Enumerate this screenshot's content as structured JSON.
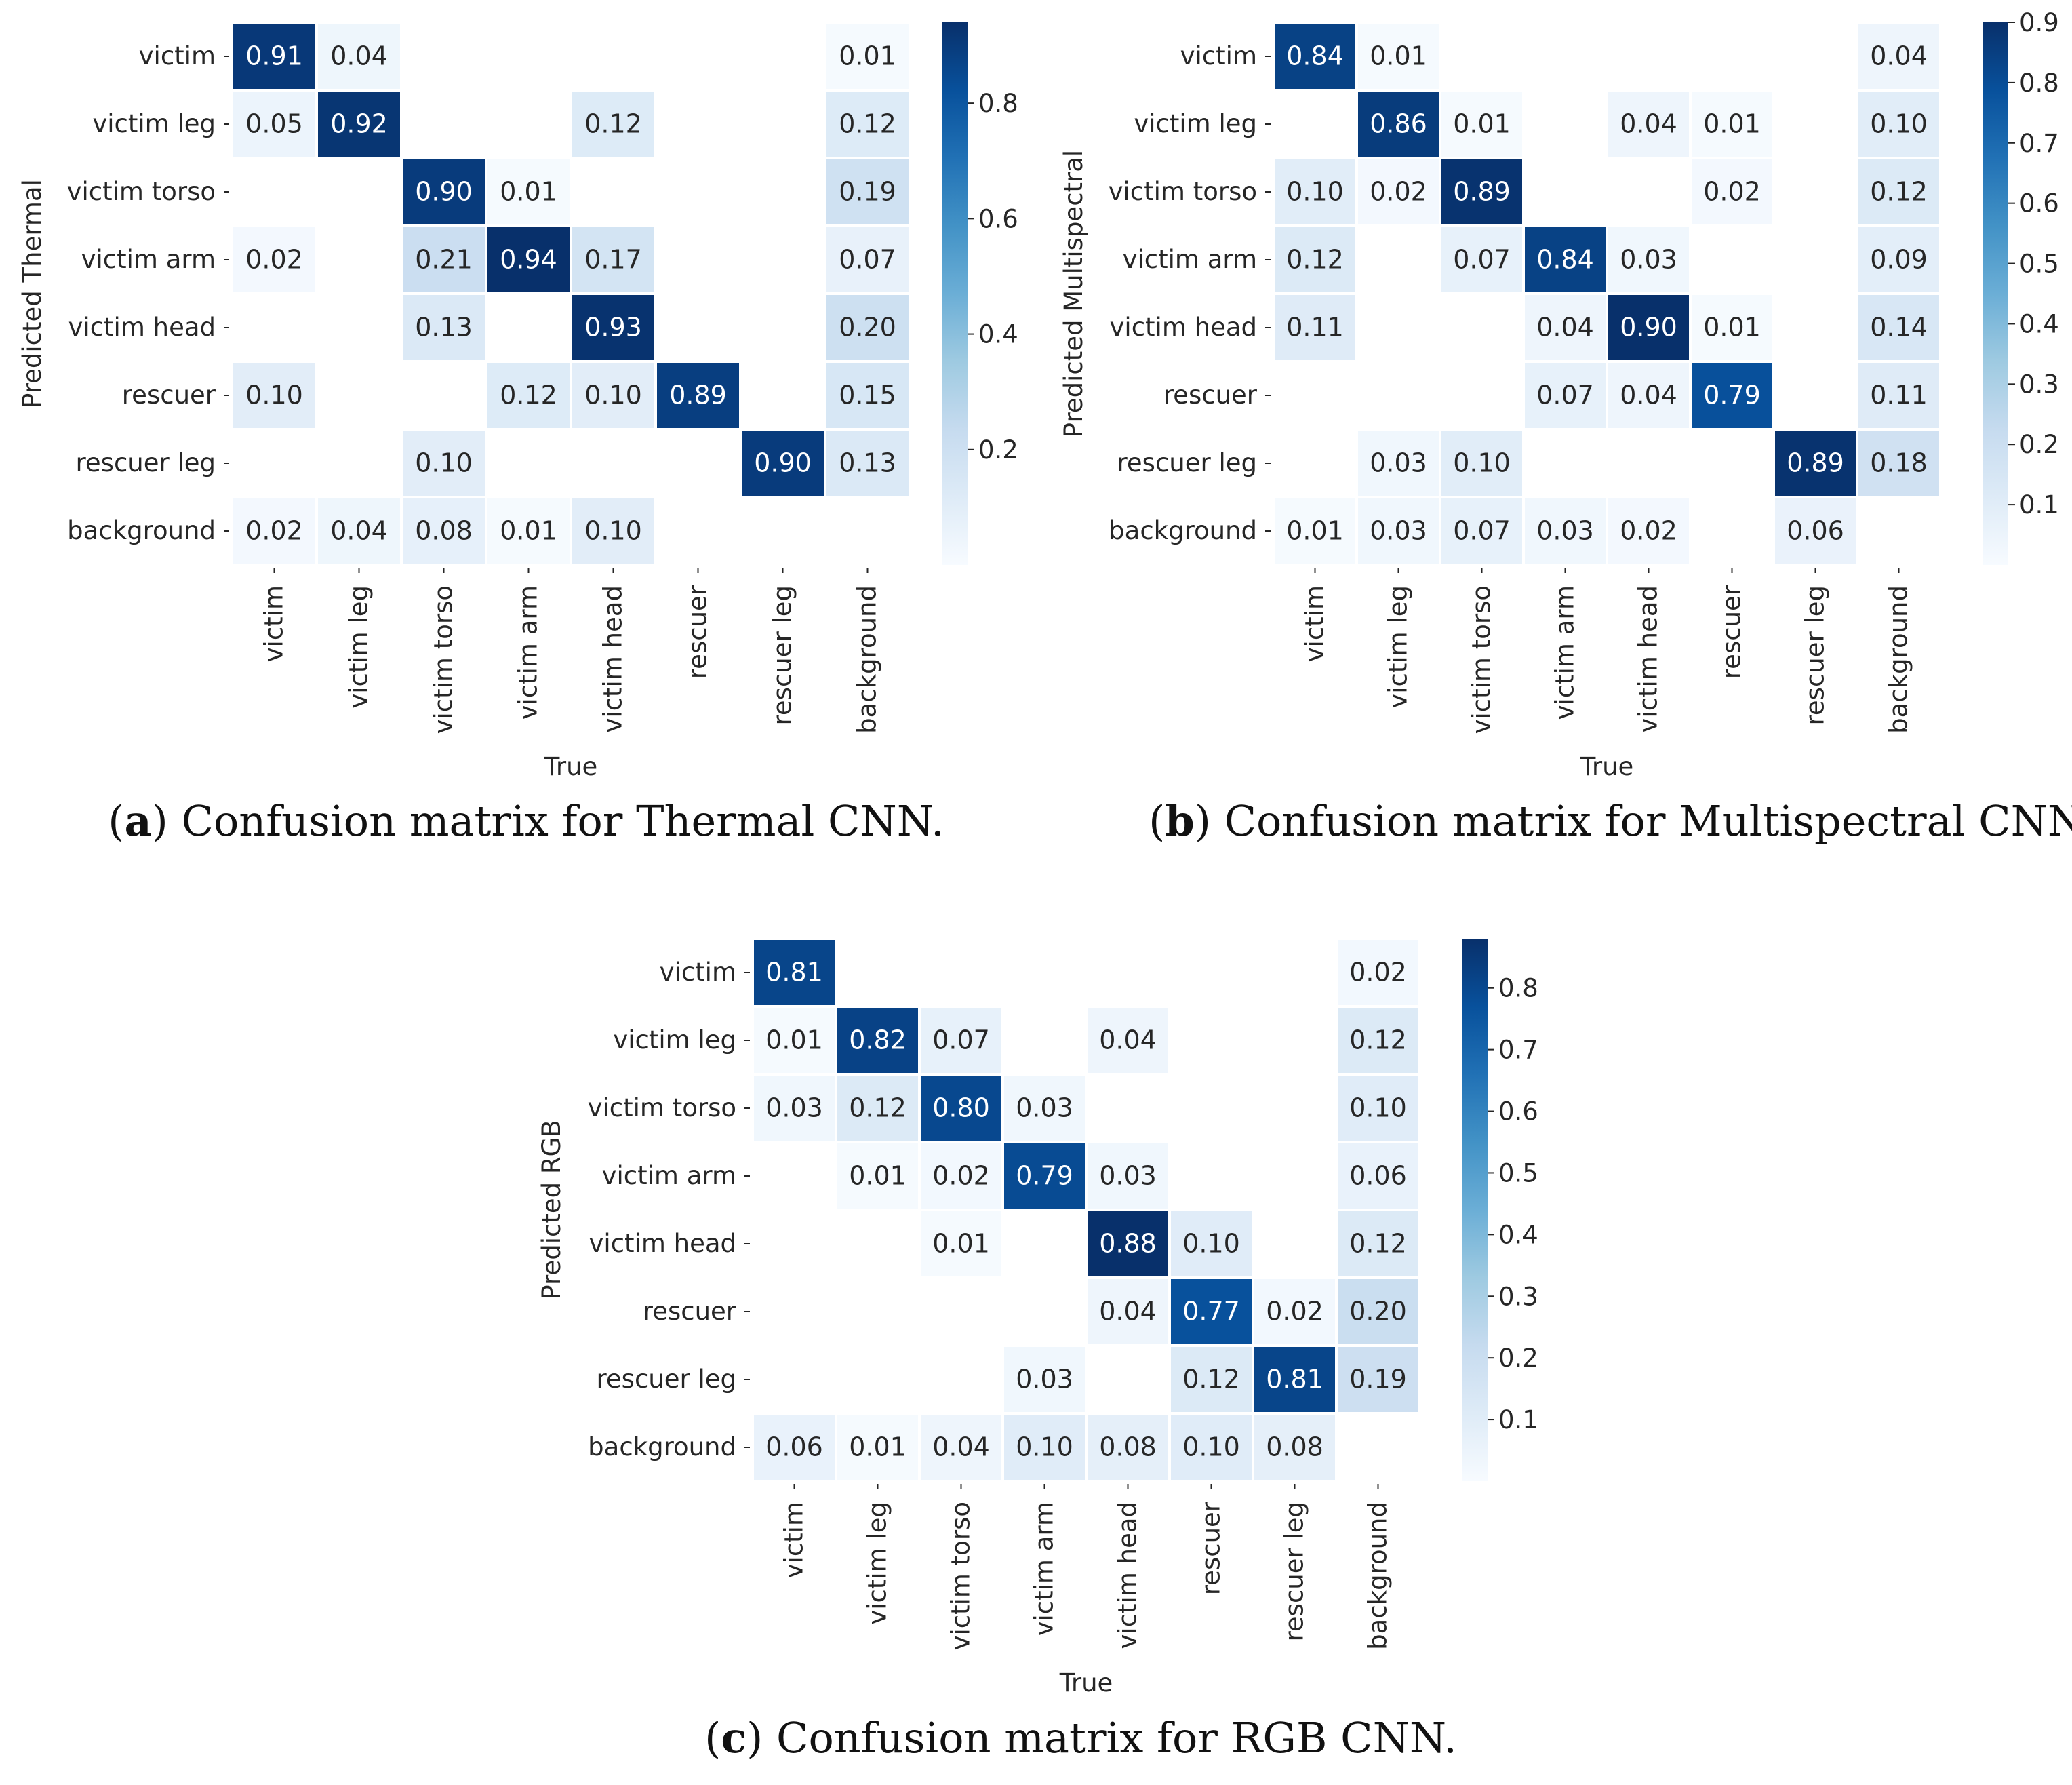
{
  "chart_data": [
    {
      "type": "heatmap",
      "panel_letter": "a",
      "caption": "Confusion matrix for Thermal CNN.",
      "xlabel": "True",
      "ylabel": "Predicted Thermal",
      "x_categories": [
        "victim",
        "victim leg",
        "victim torso",
        "victim arm",
        "victim head",
        "rescuer",
        "rescuer leg",
        "background"
      ],
      "y_categories": [
        "victim",
        "victim leg",
        "victim torso",
        "victim arm",
        "victim head",
        "rescuer",
        "rescuer leg",
        "background"
      ],
      "values": [
        [
          0.91,
          0.04,
          null,
          null,
          null,
          null,
          null,
          0.01
        ],
        [
          0.05,
          0.92,
          null,
          null,
          0.12,
          null,
          null,
          0.12
        ],
        [
          null,
          null,
          0.9,
          0.01,
          null,
          null,
          null,
          0.19
        ],
        [
          0.02,
          null,
          0.21,
          0.94,
          0.17,
          null,
          null,
          0.07
        ],
        [
          null,
          null,
          0.13,
          null,
          0.93,
          null,
          null,
          0.2
        ],
        [
          0.1,
          null,
          null,
          0.12,
          0.1,
          0.89,
          null,
          0.15
        ],
        [
          null,
          null,
          0.1,
          null,
          null,
          null,
          0.9,
          0.13
        ],
        [
          0.02,
          0.04,
          0.08,
          0.01,
          0.1,
          null,
          null,
          null
        ]
      ],
      "cell_labels": [
        [
          "0.91",
          "0.04",
          "",
          "",
          "",
          "",
          "",
          "0.01"
        ],
        [
          "0.05",
          "0.92",
          "",
          "",
          "0.12",
          "",
          "",
          "0.12"
        ],
        [
          "",
          "",
          "0.90",
          "0.01",
          "",
          "",
          "",
          "0.19"
        ],
        [
          "0.02",
          "",
          "0.21",
          "0.94",
          "0.17",
          "",
          "",
          "0.07"
        ],
        [
          "",
          "",
          "0.13",
          "",
          "0.93",
          "",
          "",
          "0.20"
        ],
        [
          "0.10",
          "",
          "",
          "0.12",
          "0.10",
          "0.89",
          "",
          "0.15"
        ],
        [
          "",
          "",
          "0.10",
          "",
          "",
          "",
          "0.90",
          "0.13"
        ],
        [
          "0.02",
          "0.04",
          "0.08",
          "0.01",
          "0.10",
          "",
          "",
          ""
        ]
      ],
      "colorbar": {
        "min": 0.0,
        "max": 0.94,
        "ticks": [
          0.2,
          0.4,
          0.6,
          0.8
        ],
        "tick_labels": [
          "0.2",
          "0.4",
          "0.6",
          "0.8"
        ]
      }
    },
    {
      "type": "heatmap",
      "panel_letter": "b",
      "caption": "Confusion matrix for Multispectral CNN.",
      "xlabel": "True",
      "ylabel": "Predicted Multispectral",
      "x_categories": [
        "victim",
        "victim leg",
        "victim torso",
        "victim arm",
        "victim head",
        "rescuer",
        "rescuer leg",
        "background"
      ],
      "y_categories": [
        "victim",
        "victim leg",
        "victim torso",
        "victim arm",
        "victim head",
        "rescuer",
        "rescuer leg",
        "background"
      ],
      "values": [
        [
          0.84,
          0.01,
          null,
          null,
          null,
          null,
          null,
          0.04
        ],
        [
          null,
          0.86,
          0.01,
          null,
          0.04,
          0.01,
          null,
          0.1
        ],
        [
          0.1,
          0.02,
          0.89,
          null,
          null,
          0.02,
          null,
          0.12
        ],
        [
          0.12,
          null,
          0.07,
          0.84,
          0.03,
          null,
          null,
          0.09
        ],
        [
          0.11,
          null,
          null,
          0.04,
          0.9,
          0.01,
          null,
          0.14
        ],
        [
          null,
          null,
          null,
          0.07,
          0.04,
          0.79,
          null,
          0.11
        ],
        [
          null,
          0.03,
          0.1,
          null,
          null,
          null,
          0.89,
          0.18
        ],
        [
          0.01,
          0.03,
          0.07,
          0.03,
          0.02,
          null,
          0.06,
          null
        ]
      ],
      "cell_labels": [
        [
          "0.84",
          "0.01",
          "",
          "",
          "",
          "",
          "",
          "0.04"
        ],
        [
          "",
          "0.86",
          "0.01",
          "",
          "0.04",
          "0.01",
          "",
          "0.10"
        ],
        [
          "0.10",
          "0.02",
          "0.89",
          "",
          "",
          "0.02",
          "",
          "0.12"
        ],
        [
          "0.12",
          "",
          "0.07",
          "0.84",
          "0.03",
          "",
          "",
          "0.09"
        ],
        [
          "0.11",
          "",
          "",
          "0.04",
          "0.90",
          "0.01",
          "",
          "0.14"
        ],
        [
          "",
          "",
          "",
          "0.07",
          "0.04",
          "0.79",
          "",
          "0.11"
        ],
        [
          "",
          "0.03",
          "0.10",
          "",
          "",
          "",
          "0.89",
          "0.18"
        ],
        [
          "0.01",
          "0.03",
          "0.07",
          "0.03",
          "0.02",
          "",
          "0.06",
          ""
        ]
      ],
      "colorbar": {
        "min": 0.0,
        "max": 0.9,
        "ticks": [
          0.1,
          0.2,
          0.3,
          0.4,
          0.5,
          0.6,
          0.7,
          0.8,
          0.9
        ],
        "tick_labels": [
          "0.1",
          "0.2",
          "0.3",
          "0.4",
          "0.5",
          "0.6",
          "0.7",
          "0.8",
          "0.9"
        ]
      }
    },
    {
      "type": "heatmap",
      "panel_letter": "c",
      "caption": "Confusion matrix for RGB CNN.",
      "xlabel": "True",
      "ylabel": "Predicted RGB",
      "x_categories": [
        "victim",
        "victim leg",
        "victim torso",
        "victim arm",
        "victim head",
        "rescuer",
        "rescuer leg",
        "background"
      ],
      "y_categories": [
        "victim",
        "victim leg",
        "victim torso",
        "victim arm",
        "victim head",
        "rescuer",
        "rescuer leg",
        "background"
      ],
      "values": [
        [
          0.81,
          null,
          null,
          null,
          null,
          null,
          null,
          0.02
        ],
        [
          0.01,
          0.82,
          0.07,
          null,
          0.04,
          null,
          null,
          0.12
        ],
        [
          0.03,
          0.12,
          0.8,
          0.03,
          null,
          null,
          null,
          0.1
        ],
        [
          null,
          0.01,
          0.02,
          0.79,
          0.03,
          null,
          null,
          0.06
        ],
        [
          null,
          null,
          0.01,
          null,
          0.88,
          0.1,
          null,
          0.12
        ],
        [
          null,
          null,
          null,
          null,
          0.04,
          0.77,
          0.02,
          0.2
        ],
        [
          null,
          null,
          null,
          0.03,
          null,
          0.12,
          0.81,
          0.19
        ],
        [
          0.06,
          0.01,
          0.04,
          0.1,
          0.08,
          0.1,
          0.08,
          null
        ]
      ],
      "cell_labels": [
        [
          "0.81",
          "",
          "",
          "",
          "",
          "",
          "",
          "0.02"
        ],
        [
          "0.01",
          "0.82",
          "0.07",
          "",
          "0.04",
          "",
          "",
          "0.12"
        ],
        [
          "0.03",
          "0.12",
          "0.80",
          "0.03",
          "",
          "",
          "",
          "0.10"
        ],
        [
          "",
          "0.01",
          "0.02",
          "0.79",
          "0.03",
          "",
          "",
          "0.06"
        ],
        [
          "",
          "",
          "0.01",
          "",
          "0.88",
          "0.10",
          "",
          "0.12"
        ],
        [
          "",
          "",
          "",
          "",
          "0.04",
          "0.77",
          "0.02",
          "0.20"
        ],
        [
          "",
          "",
          "",
          "0.03",
          "",
          "0.12",
          "0.81",
          "0.19"
        ],
        [
          "0.06",
          "0.01",
          "0.04",
          "0.10",
          "0.08",
          "0.10",
          "0.08",
          ""
        ]
      ],
      "colorbar": {
        "min": 0.0,
        "max": 0.88,
        "ticks": [
          0.1,
          0.2,
          0.3,
          0.4,
          0.5,
          0.6,
          0.7,
          0.8
        ],
        "tick_labels": [
          "0.1",
          "0.2",
          "0.3",
          "0.4",
          "0.5",
          "0.6",
          "0.7",
          "0.8"
        ]
      }
    }
  ],
  "colormap": [
    "#f7fbff",
    "#deebf7",
    "#c6dbef",
    "#9ecae1",
    "#6baed6",
    "#4292c6",
    "#2171b5",
    "#08519c",
    "#08306b"
  ]
}
